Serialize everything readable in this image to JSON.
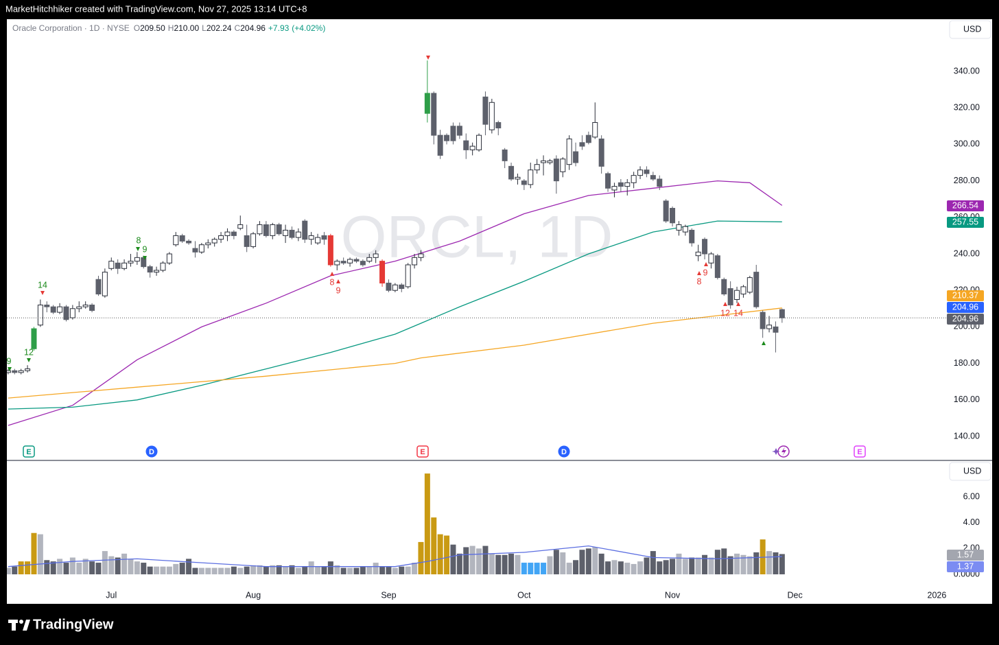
{
  "header": {
    "text": "MarketHitchhiker created with TradingView.com, Nov 27, 2025 13:14 UTC+8"
  },
  "legend": {
    "name": "Oracle Corporation · 1D · NYSE",
    "fields": [
      {
        "key": "O",
        "value": "209.50"
      },
      {
        "key": "H",
        "value": "210.00"
      },
      {
        "key": "L",
        "value": "202.24"
      },
      {
        "key": "C",
        "value": "204.96"
      }
    ],
    "change": "+7.93",
    "change_pct": "(+4.02%)"
  },
  "watermark": "ORCL, 1D",
  "currency": "USD",
  "footer": "TradingView",
  "chart_data": [
    {
      "type": "candlestick",
      "xlim": [
        -0.2,
        145.55
      ],
      "xticks": [
        {
          "value": 16,
          "label": "Jul"
        },
        {
          "value": 38,
          "label": "Aug"
        },
        {
          "value": 59,
          "label": "Sep"
        },
        {
          "value": 80,
          "label": "Oct"
        },
        {
          "value": 103,
          "label": "Nov"
        },
        {
          "value": 122,
          "label": "Dec"
        },
        {
          "value": 144,
          "label": "2026"
        }
      ],
      "ylim": [
        127.2,
        368.6
      ],
      "yticks": [
        {
          "value": 140,
          "label": "140.00"
        },
        {
          "value": 160,
          "label": "160.00"
        },
        {
          "value": 180,
          "label": "180.00"
        },
        {
          "value": 200,
          "label": "200.00"
        },
        {
          "value": 220,
          "label": "220.00"
        },
        {
          "value": 240,
          "label": "240.00"
        },
        {
          "value": 260,
          "label": "260.00"
        },
        {
          "value": 280,
          "label": "280.00"
        },
        {
          "value": 300,
          "label": "300.00"
        },
        {
          "value": 320,
          "label": "320.00"
        },
        {
          "value": 340,
          "label": "340.00"
        }
      ],
      "grid": false,
      "up_color": "#ffffff",
      "down_color": "#5d606b",
      "border_color": "#2a2e39",
      "green_bars": [
        4,
        65
      ],
      "green_color": "#2e9e48",
      "red_bars": [
        50,
        58
      ],
      "red_color": "#e53935",
      "open": [
        175,
        176,
        175,
        176,
        188,
        201,
        212,
        211,
        208,
        211,
        205,
        210,
        211,
        212,
        226,
        217,
        232,
        235,
        232,
        235,
        236,
        238,
        233,
        230,
        231,
        235,
        245,
        250,
        247,
        243,
        241,
        245,
        246,
        248,
        250,
        252,
        254,
        250,
        244,
        251,
        256,
        250,
        256,
        250,
        253,
        249,
        258,
        248,
        246,
        250,
        250,
        234,
        236,
        235,
        237,
        236,
        236,
        238,
        236,
        224,
        220,
        223,
        222,
        234,
        238,
        317,
        328,
        305,
        305,
        310,
        310,
        302,
        297,
        297,
        326,
        308,
        312,
        297,
        288,
        281,
        280,
        278,
        286,
        290,
        290,
        292,
        285,
        289,
        296,
        301,
        305,
        304,
        303,
        284,
        275,
        279,
        277,
        279,
        283,
        286,
        283,
        281,
        269,
        265,
        253,
        252,
        253,
        239,
        248,
        235,
        239,
        226,
        221,
        215,
        218,
        219,
        230,
        208,
        199,
        200,
        209.5
      ],
      "high": [
        177,
        177,
        177,
        179,
        200,
        215,
        214,
        212,
        213,
        212,
        212,
        214,
        214,
        213,
        228,
        232,
        238,
        237,
        237,
        240,
        241,
        239,
        234,
        233,
        236,
        241,
        252,
        251,
        248,
        247,
        246,
        248,
        249,
        252,
        254,
        253,
        261,
        256,
        252,
        258,
        258,
        257,
        257,
        256,
        255,
        254,
        259,
        252,
        251,
        252,
        251,
        237,
        238,
        238,
        238,
        237,
        240,
        242,
        237,
        226,
        224,
        224,
        235,
        240,
        242,
        346,
        329,
        308,
        306,
        312,
        312,
        306,
        301,
        306,
        329,
        325,
        313,
        298,
        290,
        284,
        281,
        290,
        292,
        294,
        292,
        294,
        293,
        305,
        301,
        305,
        307,
        323,
        305,
        285,
        279,
        281,
        281,
        285,
        288,
        288,
        285,
        283,
        270,
        266,
        258,
        256,
        254,
        245,
        249,
        241,
        240,
        227,
        225,
        222,
        223,
        228,
        234,
        209,
        206,
        203,
        210
      ],
      "low": [
        174,
        174,
        174,
        175,
        187,
        200,
        208,
        207,
        207,
        203,
        204,
        208,
        210,
        208,
        217,
        216,
        231,
        229,
        231,
        233,
        234,
        232,
        227,
        228,
        230,
        234,
        244,
        246,
        245,
        238,
        240,
        243,
        244,
        246,
        247,
        248,
        253,
        241,
        243,
        250,
        249,
        248,
        250,
        246,
        248,
        247,
        246,
        245,
        245,
        245,
        233,
        231,
        234,
        233,
        235,
        233,
        235,
        235,
        222,
        219,
        219,
        219,
        221,
        232,
        236,
        312,
        300,
        292,
        300,
        300,
        303,
        292,
        294,
        296,
        305,
        306,
        305,
        287,
        280,
        278,
        275,
        276,
        284,
        283,
        289,
        273,
        282,
        286,
        288,
        297,
        300,
        303,
        284,
        274,
        271,
        274,
        272,
        276,
        281,
        282,
        280,
        275,
        257,
        255,
        250,
        250,
        244,
        236,
        237,
        232,
        226,
        217,
        210,
        213,
        216,
        218,
        210,
        194,
        197,
        186,
        202.24
      ],
      "close": [
        176,
        175,
        176,
        177,
        199,
        212,
        211,
        208,
        211,
        204,
        210,
        211,
        212,
        209,
        218,
        230,
        236,
        232,
        235,
        236,
        238,
        233,
        230,
        231,
        235,
        240,
        250,
        247,
        246,
        241,
        245,
        246,
        248,
        250,
        252,
        250,
        256,
        244,
        251,
        256,
        250,
        256,
        251,
        253,
        249,
        252,
        248,
        250,
        249,
        248,
        234,
        236,
        235,
        237,
        236,
        234,
        238,
        240,
        224,
        220,
        223,
        221,
        234,
        238,
        240,
        328,
        305,
        294,
        302,
        302,
        305,
        297,
        299,
        305,
        311,
        323,
        309,
        291,
        281,
        282,
        278,
        286,
        289,
        291,
        291,
        280,
        292,
        303,
        290,
        299,
        301,
        312,
        288,
        276,
        277,
        277,
        279,
        283,
        286,
        284,
        281,
        277,
        258,
        257,
        256,
        255,
        246,
        241,
        240,
        240,
        227,
        218,
        212,
        220,
        222,
        227,
        211,
        199,
        201,
        197.03,
        204.96
      ],
      "series": [
        {
          "color": "#9c27b0",
          "x": [
            0,
            10,
            20,
            30,
            40,
            50,
            60,
            70,
            80,
            90,
            100,
            110,
            115,
            120
          ],
          "values": [
            146,
            157,
            182,
            200,
            213,
            228,
            236,
            247,
            262,
            272,
            276,
            280,
            279,
            266.54
          ]
        },
        {
          "color": "#089981",
          "x": [
            0,
            10,
            20,
            30,
            40,
            50,
            60,
            64,
            70,
            80,
            90,
            100,
            110,
            120
          ],
          "values": [
            155,
            156,
            160,
            168,
            177,
            186,
            196,
            202,
            211,
            225,
            240,
            252,
            258,
            257.55
          ]
        },
        {
          "color": "#f5a623",
          "x": [
            0,
            20,
            40,
            60,
            64,
            80,
            100,
            120
          ],
          "values": [
            161,
            167,
            173,
            180,
            183,
            190,
            202,
            210.37
          ]
        }
      ],
      "annotations": [
        "9",
        "12",
        "14",
        "8",
        "9",
        "8",
        "9",
        "8",
        "9",
        "12",
        "14"
      ],
      "events": [
        "E",
        "D",
        "E",
        "D",
        "E"
      ]
    },
    {
      "type": "bar",
      "ylim": [
        -0.69,
        8.76
      ],
      "yticks": [
        {
          "value": 0,
          "label": "0.0000"
        },
        {
          "value": 2,
          "label": "2.00"
        },
        {
          "value": 4,
          "label": "4.00"
        },
        {
          "value": 6,
          "label": "6.00"
        }
      ],
      "up_color": "#b2b5be",
      "down_color": "#5d606b",
      "highlights": [
        2,
        3,
        4,
        64,
        65,
        66,
        67,
        68,
        117
      ],
      "highlight_color": "#c99a13",
      "lows": [
        80,
        81,
        82,
        83
      ],
      "low_color": "#42a5f5",
      "values": [
        0.5,
        0.6,
        1.0,
        1.0,
        3.2,
        3.1,
        1.1,
        1.0,
        1.2,
        0.9,
        1.3,
        0.9,
        1.2,
        1.0,
        0.9,
        1.8,
        1.4,
        1.3,
        1.6,
        1.2,
        1.0,
        0.9,
        0.6,
        0.6,
        0.6,
        0.6,
        0.8,
        0.9,
        1.2,
        0.5,
        0.5,
        0.5,
        0.5,
        0.5,
        0.5,
        0.6,
        0.5,
        0.6,
        0.7,
        0.7,
        0.6,
        0.7,
        0.7,
        0.6,
        0.7,
        0.5,
        0.6,
        1.0,
        0.6,
        0.6,
        1.0,
        0.7,
        0.5,
        0.5,
        0.5,
        0.6,
        0.6,
        0.9,
        0.6,
        0.6,
        0.5,
        0.6,
        0.6,
        0.9,
        2.5,
        7.8,
        4.4,
        3.1,
        3.0,
        2.3,
        1.6,
        2.1,
        2.2,
        2.0,
        2.2,
        1.6,
        1.5,
        1.5,
        1.6,
        1.5,
        0.9,
        0.9,
        0.9,
        0.9,
        1.4,
        1.9,
        1.7,
        0.9,
        1.1,
        1.9,
        2.0,
        2.1,
        1.6,
        1.0,
        1.1,
        1.0,
        0.9,
        0.8,
        1.0,
        1.3,
        1.8,
        1.0,
        1.1,
        1.2,
        1.6,
        1.2,
        1.3,
        1.3,
        1.5,
        1.3,
        1.9,
        2.0,
        1.4,
        1.6,
        1.5,
        1.4,
        1.7,
        2.7,
        1.8,
        1.7,
        1.57
      ],
      "series": [
        {
          "color": "#5b6ee1",
          "x": [
            0,
            10,
            20,
            30,
            40,
            50,
            60,
            65,
            70,
            80,
            90,
            100,
            110,
            120
          ],
          "values": [
            0.6,
            1.0,
            1.2,
            0.9,
            0.6,
            0.6,
            0.6,
            1.0,
            1.5,
            1.7,
            2.2,
            1.3,
            1.2,
            1.37
          ]
        }
      ]
    }
  ]
}
